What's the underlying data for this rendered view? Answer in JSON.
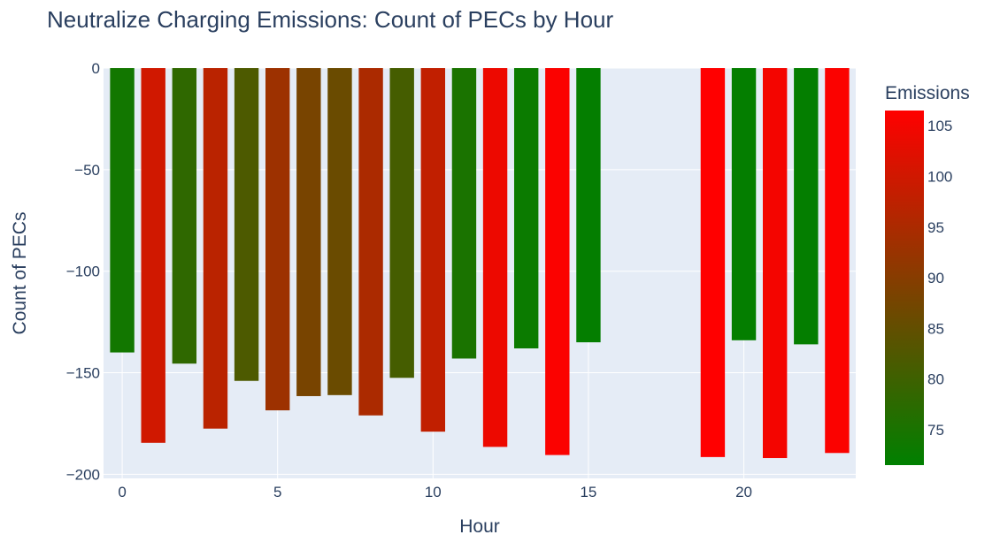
{
  "chart_data": {
    "type": "bar",
    "title": "Neutralize Charging Emissions: Count of PECs by Hour",
    "xlabel": "Hour",
    "ylabel": "Count of PECs",
    "x": [
      0,
      1,
      2,
      3,
      4,
      5,
      6,
      7,
      8,
      9,
      10,
      11,
      12,
      13,
      14,
      15,
      19,
      20,
      21,
      22,
      23
    ],
    "values": [
      -140,
      -184.5,
      -145.5,
      -177.5,
      -154,
      -168.5,
      -161.5,
      -161,
      -171,
      -152.5,
      -179,
      -143,
      -186.5,
      -138,
      -190.5,
      -135,
      -191.5,
      -134,
      -192,
      -136,
      -189.5
    ],
    "emissions": [
      74,
      100,
      78,
      97,
      82,
      93,
      88,
      86,
      95,
      81,
      98,
      75,
      104,
      73,
      106,
      72,
      107,
      72,
      105,
      72,
      106
    ],
    "xlim": [
      -0.6,
      23.6
    ],
    "ylim": [
      -202,
      0
    ],
    "xticks": [
      0,
      5,
      10,
      15,
      20
    ],
    "yticks": [
      0,
      -50,
      -100,
      -150,
      -200
    ],
    "grid": true,
    "colorbar": {
      "title": "Emissions",
      "min": 71.5,
      "max": 106.5,
      "ticks": [
        75,
        80,
        85,
        90,
        95,
        100,
        105
      ],
      "colorscale": [
        "#008000",
        "#ff0000"
      ]
    }
  }
}
